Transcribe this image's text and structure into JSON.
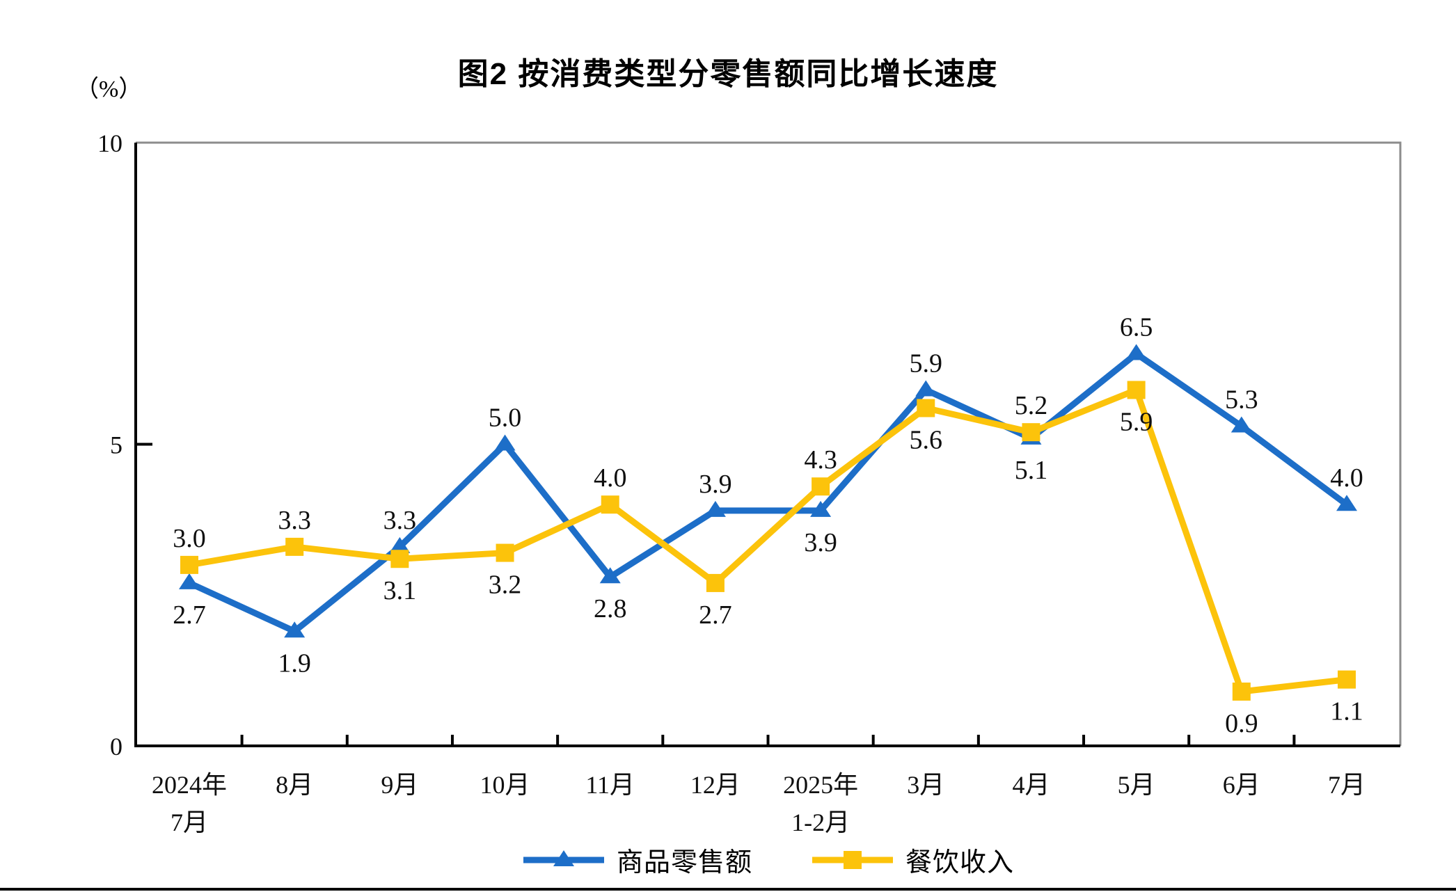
{
  "chart_data": {
    "type": "line",
    "title": "图2 按消费类型分零售额同比增长速度",
    "unit": "（%）",
    "categories": [
      [
        "2024年",
        "7月"
      ],
      [
        "8月"
      ],
      [
        "9月"
      ],
      [
        "10月"
      ],
      [
        "11月"
      ],
      [
        "12月"
      ],
      [
        "2025年",
        "1-2月"
      ],
      [
        "3月"
      ],
      [
        "4月"
      ],
      [
        "5月"
      ],
      [
        "6月"
      ],
      [
        "7月"
      ]
    ],
    "series": [
      {
        "id": "goods-retail",
        "name": "商品零售额",
        "color": "#1d6ec8",
        "marker": "triangle",
        "values": [
          2.7,
          1.9,
          3.3,
          5.0,
          2.8,
          3.9,
          3.9,
          5.9,
          5.1,
          6.5,
          5.3,
          4.0
        ],
        "labels": [
          "2.7",
          "1.9",
          "3.3",
          "5.0",
          "2.8",
          "3.9",
          "3.9",
          "5.9",
          "5.1",
          "6.5",
          "5.3",
          "4.0"
        ]
      },
      {
        "id": "catering-revenue",
        "name": "餐饮收入",
        "color": "#fcc30b",
        "marker": "square",
        "values": [
          3.0,
          3.3,
          3.1,
          3.2,
          4.0,
          2.7,
          4.3,
          5.6,
          5.2,
          5.9,
          0.9,
          1.1
        ],
        "labels": [
          "3.0",
          "3.3",
          "3.1",
          "3.2",
          "4.0",
          "2.7",
          "4.3",
          "5.6",
          "5.2",
          "5.9",
          "0.9",
          "1.1"
        ]
      }
    ],
    "ylim": [
      0,
      10
    ],
    "yticks": [
      0,
      5,
      10
    ],
    "xlabel": "",
    "ylabel": "（%）",
    "grid": false,
    "legend_position": "bottom",
    "colors": {
      "axis": "#000000",
      "border": "#8c8c8c",
      "text": "#0f0f0f"
    }
  }
}
